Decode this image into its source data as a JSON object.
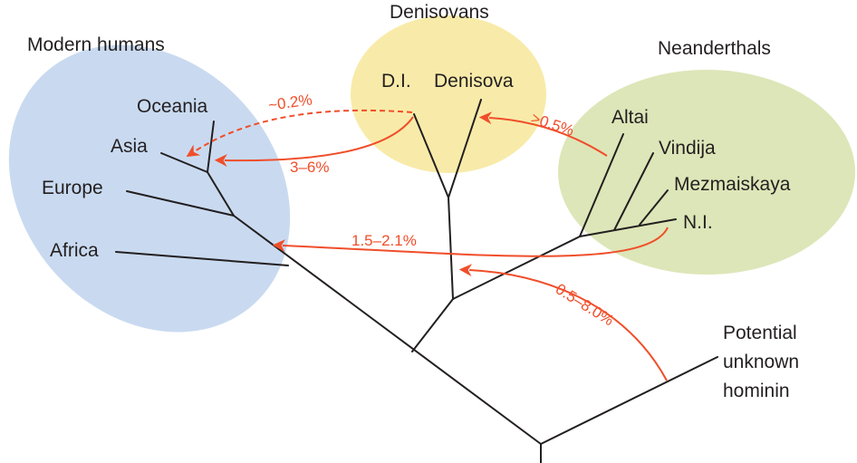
{
  "groups": {
    "modern_humans": {
      "title": "Modern humans",
      "color": "#c9daf0"
    },
    "denisovans": {
      "title": "Denisovans",
      "color": "#f8eba9"
    },
    "neanderthals": {
      "title": "Neanderthals",
      "color": "#dde6b8"
    }
  },
  "taxa": {
    "oceania": "Oceania",
    "asia": "Asia",
    "europe": "Europe",
    "africa": "Africa",
    "di": "D.I.",
    "denisova": "Denisova",
    "altai": "Altai",
    "vindija": "Vindija",
    "mezmaiskaya": "Mezmaiskaya",
    "ni": "N.I.",
    "unknown_line1": "Potential",
    "unknown_line2": "unknown",
    "unknown_line3": "hominin"
  },
  "gene_flow": {
    "color": "#f04e2a",
    "denisovan_to_oceania": "~0.2%",
    "denisovan_to_asia": "3–6%",
    "neanderthal_to_denisova": ">0.5%",
    "neanderthal_to_modern": "1.5–2.1%",
    "unknown_to_denisovan": "0.5–8.0%"
  }
}
